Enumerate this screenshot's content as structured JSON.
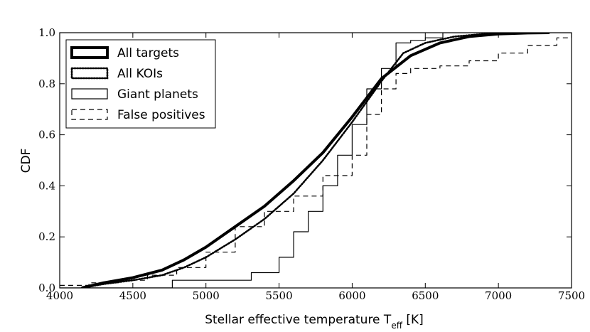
{
  "chart_data": {
    "type": "line",
    "title": "",
    "xlabel": "Stellar effective temperature T",
    "xlabel_sub": "eff",
    "xlabel_unit": " [K]",
    "ylabel": "CDF",
    "xlim": [
      4000,
      7500
    ],
    "ylim": [
      0.0,
      1.0
    ],
    "x_ticks": [
      4000,
      4500,
      5000,
      5500,
      6000,
      6500,
      7000,
      7500
    ],
    "y_ticks": [
      0.0,
      0.2,
      0.4,
      0.6,
      0.8,
      1.0
    ],
    "y_tick_labels": [
      "0.0",
      "0.2",
      "0.4",
      "0.6",
      "0.8",
      "1.0"
    ],
    "grid": false,
    "legend_position": "top-left",
    "series": [
      {
        "name": "All targets",
        "style": "thick",
        "x": [
          4150,
          4300,
          4500,
          4700,
          4850,
          5000,
          5200,
          5400,
          5600,
          5800,
          6000,
          6200,
          6400,
          6600,
          6800,
          7000,
          7200,
          7350
        ],
        "y": [
          0.0,
          0.02,
          0.04,
          0.07,
          0.11,
          0.16,
          0.24,
          0.32,
          0.42,
          0.53,
          0.67,
          0.82,
          0.91,
          0.96,
          0.985,
          0.995,
          0.999,
          1.0
        ]
      },
      {
        "name": "All KOIs",
        "style": "dotted",
        "x": [
          4150,
          4300,
          4500,
          4700,
          4850,
          5000,
          5200,
          5400,
          5600,
          5800,
          6000,
          6200,
          6350,
          6500,
          6700,
          6900,
          7100,
          7300
        ],
        "y": [
          0.0,
          0.015,
          0.03,
          0.05,
          0.08,
          0.12,
          0.19,
          0.27,
          0.37,
          0.5,
          0.65,
          0.81,
          0.92,
          0.96,
          0.985,
          0.995,
          0.999,
          1.0
        ]
      },
      {
        "name": "Giant planets",
        "style": "solid-step",
        "x": [
          4000,
          4770,
          4770,
          5310,
          5310,
          5500,
          5600,
          5700,
          5800,
          5900,
          6000,
          6100,
          6200,
          6300,
          6400,
          6500,
          6620,
          6620,
          7500
        ],
        "y": [
          0.0,
          0.0,
          0.03,
          0.03,
          0.06,
          0.12,
          0.22,
          0.3,
          0.4,
          0.52,
          0.64,
          0.78,
          0.86,
          0.96,
          0.97,
          0.98,
          0.98,
          1.0,
          1.0
        ]
      },
      {
        "name": "False positives",
        "style": "dashed-step",
        "x": [
          4000,
          4200,
          4400,
          4600,
          4800,
          5000,
          5200,
          5400,
          5600,
          5800,
          6000,
          6100,
          6200,
          6300,
          6400,
          6600,
          6800,
          7000,
          7200,
          7400,
          7500
        ],
        "y": [
          0.01,
          0.02,
          0.03,
          0.05,
          0.08,
          0.14,
          0.24,
          0.3,
          0.36,
          0.44,
          0.52,
          0.68,
          0.78,
          0.84,
          0.86,
          0.87,
          0.89,
          0.92,
          0.95,
          0.98,
          1.0
        ]
      }
    ]
  }
}
